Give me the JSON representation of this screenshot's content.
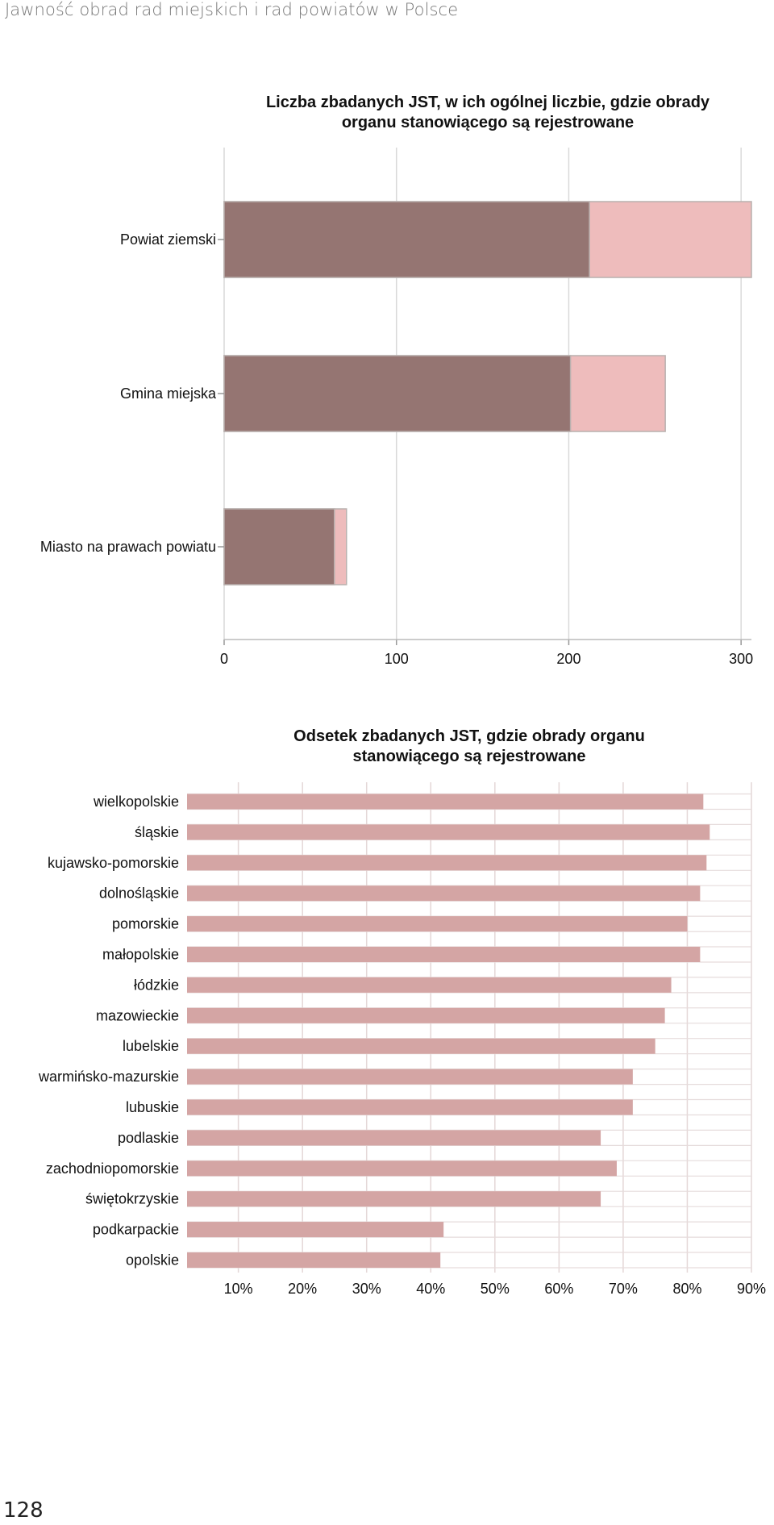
{
  "header": {
    "running_title": "Jawność obrad rad miejskich i rad powiatów w Polsce"
  },
  "footer": {
    "page_number": "128"
  },
  "colors": {
    "registered": "#957572",
    "total": "#eebcbc",
    "percent_bar": "#d4a5a4",
    "grid": "#d9d9d9"
  },
  "chart_data": [
    {
      "type": "bar",
      "orientation": "horizontal",
      "title": "Liczba zbadanych JST, w ich ogólnej liczbie, gdzie obrady organu stanowiącego są rejestrowane",
      "title_lines": [
        "Liczba zbadanych JST, w ich ogólnej liczbie, gdzie obrady",
        "organu stanowiącego są rejestrowane"
      ],
      "categories": [
        "Powiat ziemski",
        "Gmina miejska",
        "Miasto na prawach powiatu"
      ],
      "series": [
        {
          "values": [
            306,
            256,
            71
          ]
        },
        {
          "values": [
            212,
            201,
            64
          ]
        }
      ],
      "overlay": true,
      "xlim": [
        0,
        306
      ],
      "xticks": [
        0,
        100,
        200,
        300
      ],
      "xtick_labels": [
        "0",
        "100",
        "200",
        "300"
      ],
      "grid": true
    },
    {
      "type": "bar",
      "orientation": "horizontal",
      "title": "Odsetek zbadanych JST, gdzie obrady organu stanowiącego są rejestrowane",
      "title_lines": [
        "Odsetek zbadanych JST, gdzie obrady organu",
        "stanowiącego są rejestrowane"
      ],
      "categories": [
        "wielkopolskie",
        "śląskie",
        "kujawsko-pomorskie",
        "dolnośląskie",
        "pomorskie",
        "małopolskie",
        "łódzkie",
        "mazowieckie",
        "lubelskie",
        "warmińsko-mazurskie",
        "lubuskie",
        "podlaskie",
        "zachodniopomorskie",
        "świętokrzyskie",
        "podkarpackie",
        "opolskie"
      ],
      "values": [
        82.5,
        83.5,
        83.0,
        82.0,
        80.0,
        82.0,
        77.5,
        76.5,
        75.0,
        71.5,
        71.5,
        66.5,
        69.0,
        66.5,
        42.0,
        41.5
      ],
      "xlim": [
        2,
        90
      ],
      "xticks": [
        10,
        20,
        30,
        40,
        50,
        60,
        70,
        80,
        90
      ],
      "xtick_labels": [
        "10%",
        "20%",
        "30%",
        "40%",
        "50%",
        "60%",
        "70%",
        "80%",
        "90%"
      ],
      "grid": true
    }
  ]
}
